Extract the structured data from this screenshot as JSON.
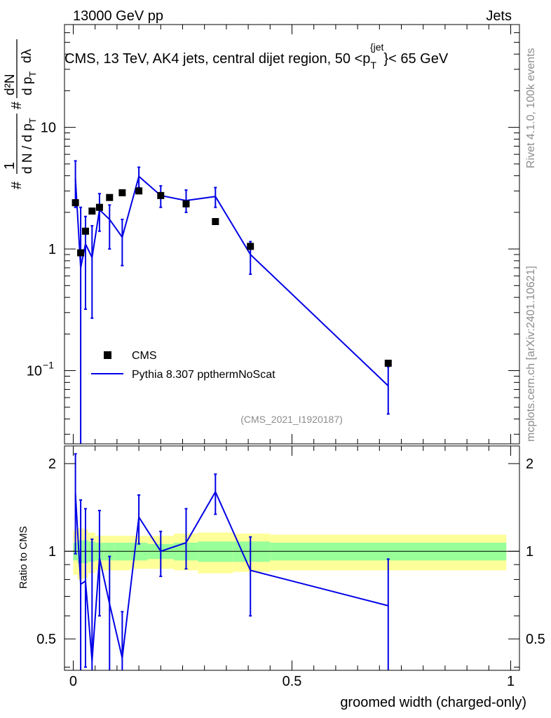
{
  "header": {
    "left": "13000 GeV pp",
    "right": "Jets"
  },
  "side_texts": {
    "rivet": "Rivet 4.1.0,  100k events",
    "mcplots": "mcplots.cern.ch [arXiv:2401.10621]"
  },
  "chart_data": {
    "type": "line",
    "title": "CMS, 13 TeV, AK4 jets, central dijet region, 50 <p_T^{jet}< 65 GeV",
    "title_parts": {
      "main": "CMS, 13 TeV, AK4 jets, central dijet region, 50 <p",
      "sub": "T",
      "sup": "{jet",
      "tail": "}< 65 GeV"
    },
    "xlabel": "groomed width (charged-only)",
    "ylabel_parts": {
      "hash1": "#",
      "one": "1",
      "dn": "d N / d p",
      "t1": "T",
      "hash2": "#",
      "d2n": "d²N",
      "dpt": "d p",
      "t2": "T",
      "dlambda": "dλ"
    },
    "ratio_ylabel": "Ratio to CMS",
    "watermark": "(CMS_2021_I1920187)",
    "xlim": [
      -0.02,
      1.02
    ],
    "ylim_main": [
      0.025,
      70
    ],
    "ylim_ratio": [
      0.39,
      2.3
    ],
    "y_scale_main": "log",
    "legend_position": "lower-left",
    "x_tick_labels": [
      "0",
      "0.5",
      "1"
    ],
    "x_ticks": [
      0,
      0.5,
      1
    ],
    "main_tick_labels": [
      {
        "value": 10,
        "label": "10"
      },
      {
        "value": 1,
        "label": "1"
      },
      {
        "value": 0.1,
        "label": "10",
        "exponent": "−1"
      }
    ],
    "ratio_tick_labels": [
      {
        "value": 2,
        "label": "2"
      },
      {
        "value": 1,
        "label": "1"
      },
      {
        "value": 0.5,
        "label": "0.5"
      }
    ],
    "series": [
      {
        "name": "CMS",
        "kind": "data",
        "color": "#000000",
        "x": [
          0.005,
          0.017,
          0.028,
          0.043,
          0.06,
          0.083,
          0.112,
          0.15,
          0.2,
          0.258,
          0.325,
          0.405,
          0.72
        ],
        "y": [
          2.4,
          0.93,
          1.4,
          2.05,
          2.2,
          2.65,
          2.9,
          3.0,
          2.75,
          2.35,
          1.68,
          1.05,
          0.115
        ]
      },
      {
        "name": "Pythia 8.307 ppthermNoScat",
        "kind": "mc",
        "color": "#0000e6",
        "x": [
          0.005,
          0.017,
          0.028,
          0.043,
          0.06,
          0.083,
          0.112,
          0.15,
          0.2,
          0.258,
          0.325,
          0.405,
          0.72
        ],
        "y": [
          3.8,
          0.7,
          1.1,
          0.85,
          2.1,
          1.75,
          1.25,
          3.95,
          2.75,
          2.5,
          2.7,
          0.9,
          0.075
        ],
        "y_low": [
          2.2,
          0.02,
          0.32,
          0.27,
          1.4,
          1.0,
          0.73,
          3.2,
          2.2,
          2.0,
          2.2,
          0.62,
          0.044
        ],
        "y_high": [
          5.3,
          2.2,
          1.85,
          1.55,
          2.85,
          2.3,
          1.75,
          4.7,
          3.3,
          3.05,
          3.2,
          1.15,
          0.108
        ]
      }
    ],
    "ratio": {
      "reference_line": 1,
      "x": [
        0.005,
        0.017,
        0.028,
        0.043,
        0.06,
        0.083,
        0.112,
        0.15,
        0.2,
        0.258,
        0.325,
        0.405,
        0.72
      ],
      "y": [
        1.58,
        0.77,
        0.79,
        0.42,
        0.95,
        0.66,
        0.43,
        1.31,
        1.0,
        1.07,
        1.6,
        0.86,
        0.65
      ],
      "y_low": [
        0.98,
        0.39,
        0.4,
        0.39,
        0.6,
        0.39,
        0.39,
        1.06,
        0.82,
        0.87,
        1.34,
        0.6,
        0.39
      ],
      "y_high": [
        2.16,
        1.5,
        1.4,
        1.1,
        1.38,
        0.96,
        0.62,
        1.56,
        1.17,
        1.4,
        1.84,
        1.12,
        0.94
      ],
      "bands_x_edges": [
        0.0,
        0.01,
        0.022,
        0.034,
        0.05,
        0.07,
        0.095,
        0.13,
        0.17,
        0.23,
        0.285,
        0.365,
        0.45,
        0.99
      ],
      "band_inner_low": [
        0.93,
        0.91,
        0.91,
        0.92,
        0.93,
        0.93,
        0.93,
        0.93,
        0.94,
        0.93,
        0.92,
        0.92,
        0.93
      ],
      "band_inner_high": [
        1.07,
        1.09,
        1.09,
        1.08,
        1.07,
        1.07,
        1.07,
        1.07,
        1.06,
        1.07,
        1.08,
        1.08,
        1.07
      ],
      "band_outer_low": [
        0.83,
        0.8,
        0.81,
        0.84,
        0.86,
        0.86,
        0.86,
        0.87,
        0.87,
        0.86,
        0.84,
        0.85,
        0.86
      ],
      "band_outer_high": [
        1.18,
        1.2,
        1.19,
        1.16,
        1.13,
        1.13,
        1.13,
        1.13,
        1.13,
        1.15,
        1.16,
        1.15,
        1.14
      ],
      "inner_band_color": "#99ff99",
      "outer_band_color": "#ffff99"
    }
  }
}
